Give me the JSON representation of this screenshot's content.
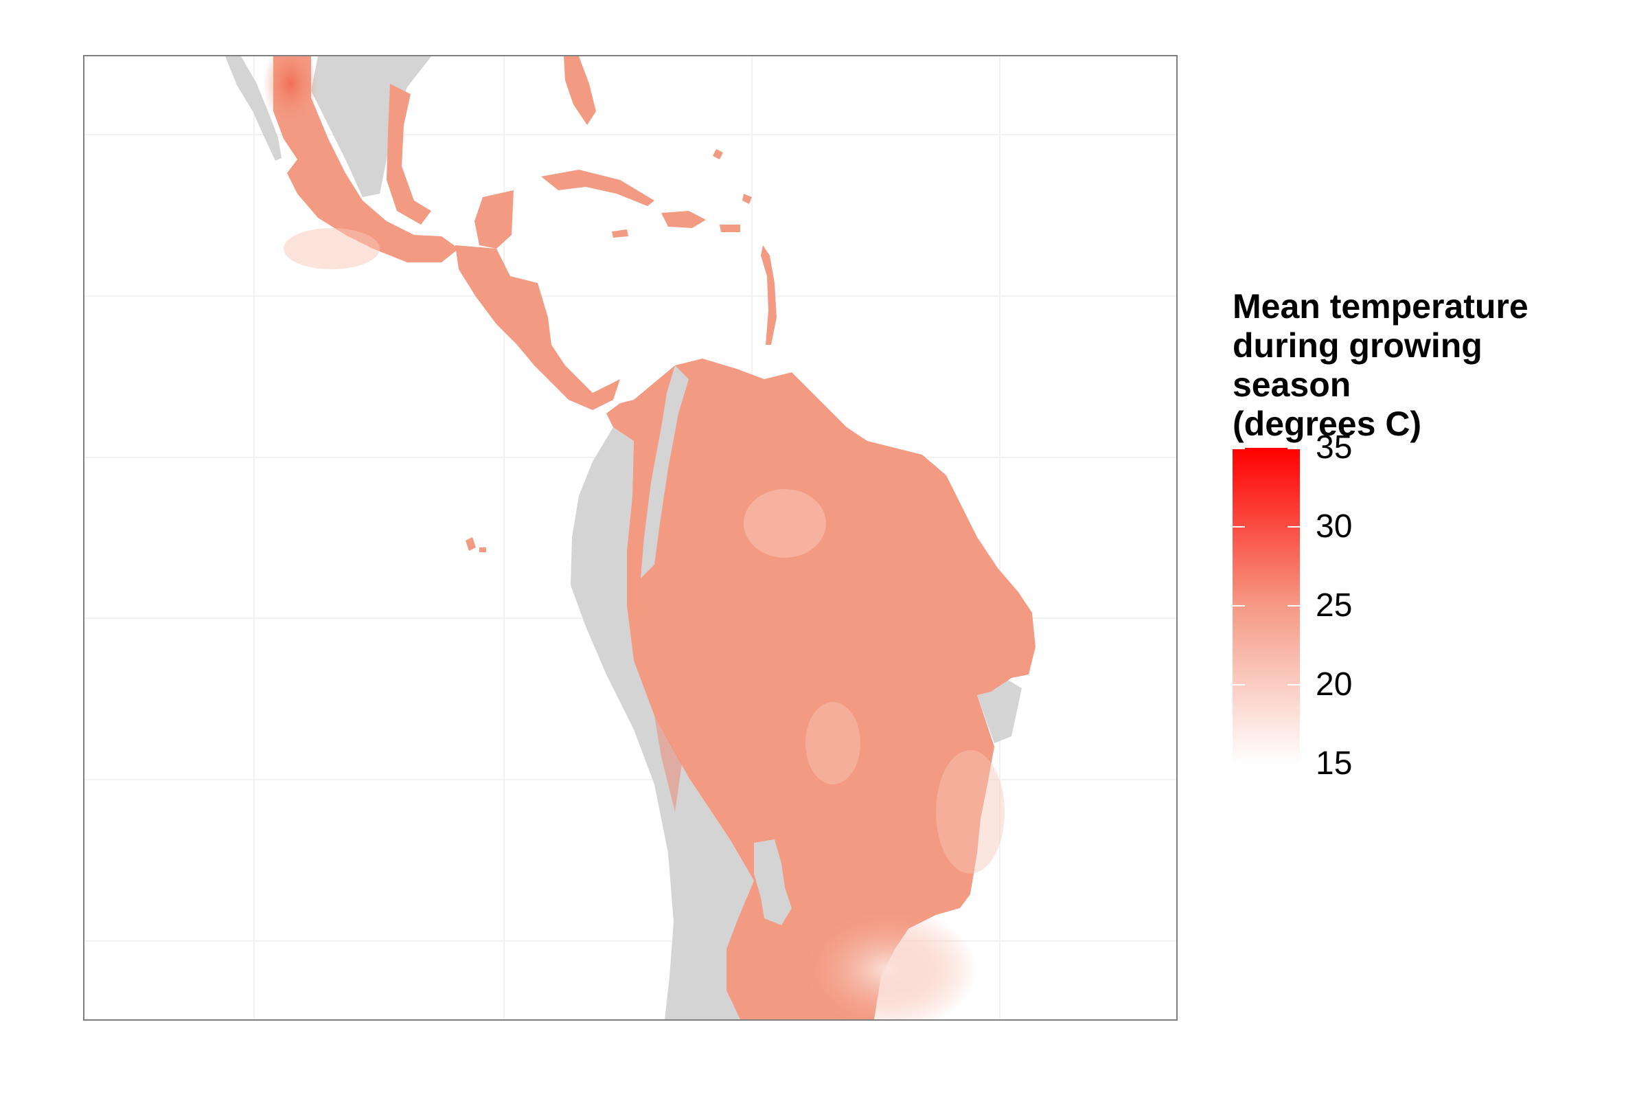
{
  "legend": {
    "title_lines": [
      "Mean temperature",
      "during growing",
      "season",
      "(degrees C)"
    ],
    "ticks": [
      "35",
      "30",
      "25",
      "20",
      "15"
    ],
    "min": 15,
    "max": 35,
    "low_color": "#ffffff",
    "high_color": "#ff0000"
  },
  "colors": {
    "land_no_data": "#d4d4d4",
    "land_typical": "#f39a82",
    "land_warm": "#f26e55",
    "land_cool": "#f7c7b8",
    "panel_border": "#7f7f7f",
    "gridline": "#f2f2f2"
  },
  "icons": [
    "map-raster"
  ]
}
